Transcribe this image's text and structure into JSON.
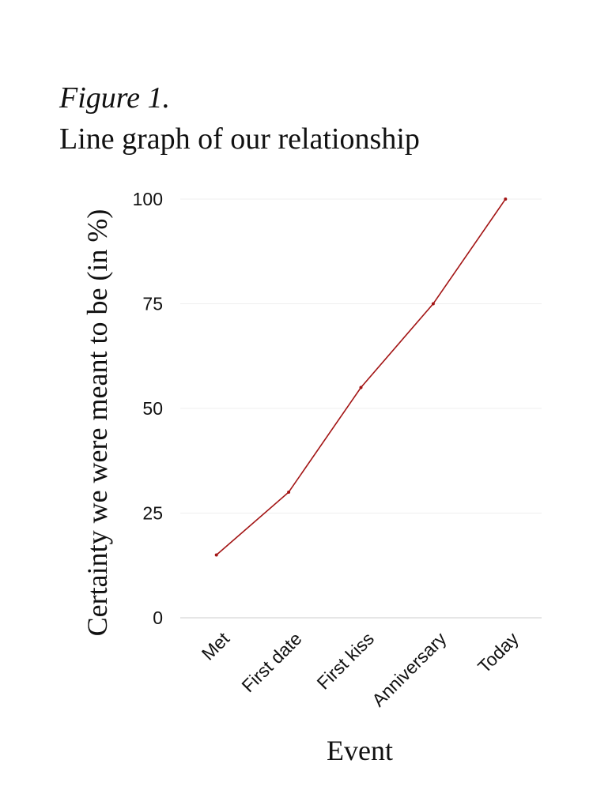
{
  "chart_data": {
    "type": "line",
    "title": "Figure 1.",
    "subtitle": "Line graph of our relationship",
    "x_label": "Event",
    "y_label": "Certainty we were meant to be (in %)",
    "categories": [
      "Met",
      "First date",
      "First kiss",
      "Anniversary",
      "Today"
    ],
    "values": [
      15,
      30,
      55,
      75,
      100
    ],
    "color": "#a31515",
    "ylim": [
      0,
      100
    ],
    "yticks": [
      0,
      25,
      50,
      75,
      100
    ],
    "grid": true
  }
}
